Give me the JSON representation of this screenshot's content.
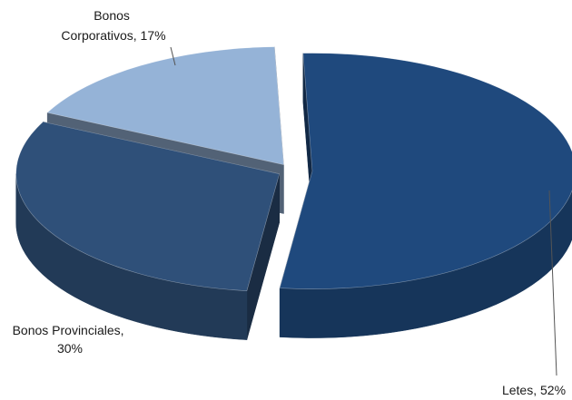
{
  "chart_data": {
    "type": "pie",
    "style": "3d-exploded",
    "slices": [
      {
        "name": "Letes",
        "value": 52,
        "label": "Letes, 52%",
        "color": "#1f497d"
      },
      {
        "name": "Bonos Provinciales",
        "value": 30,
        "label_lines": [
          "Bonos Provinciales,",
          "30%"
        ],
        "color": "#2f5079"
      },
      {
        "name": "Bonos Corporativos",
        "value": 17,
        "label_lines": [
          "Bonos",
          "Corporativos, 17%"
        ],
        "color": "#95b3d7"
      }
    ],
    "title": "",
    "legend": "none"
  }
}
